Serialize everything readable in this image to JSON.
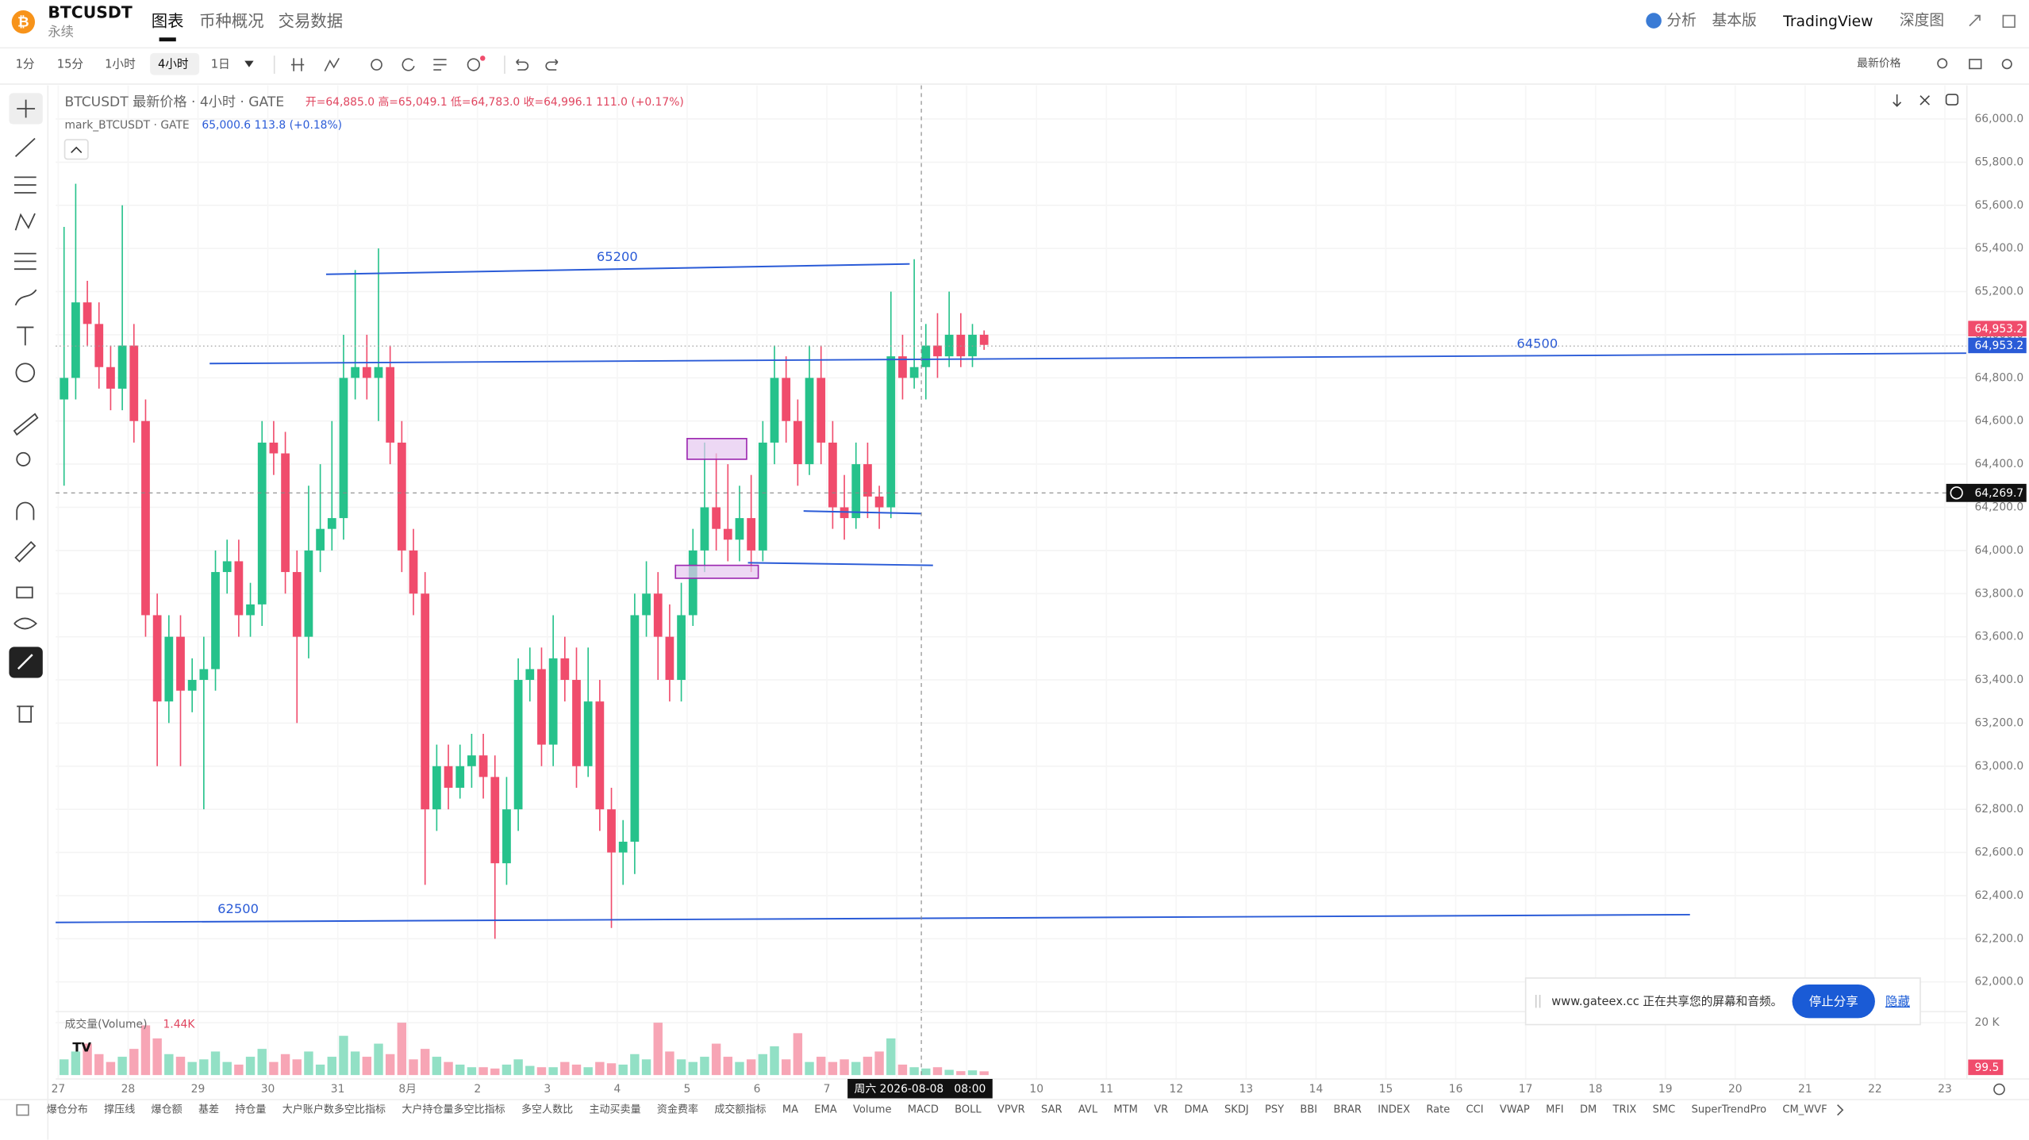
{
  "ui": {
    "symbol": "BTCUSDT",
    "contract": "永续",
    "tabs": [
      "图表",
      "币种概况",
      "交易数据"
    ],
    "right_menu": [
      "分析",
      "基本版",
      "TradingView",
      "深度图"
    ],
    "intervals": [
      "1分",
      "15分",
      "1小时",
      "4小时",
      "1日"
    ],
    "price_mode": "最新价格",
    "legend_title": "BTCUSDT 最新价格 · 4小时 · GATE",
    "legend_ohlc": "开=64,885.0 高=65,049.1 低=64,783.0 收=64,996.1 111.0 (+0.17%)",
    "mark_title": "mark_BTCUSDT · GATE",
    "mark_value": "65,000.6 113.8 (+0.18%)",
    "drawing_labels": [
      "65200",
      "64500",
      "62500"
    ],
    "volume_title": "成交量(Volume)",
    "volume_last": "1.44K",
    "last_price_tags": [
      "64,953.2",
      "64,953.2"
    ],
    "crosshair_price": "64,269.7",
    "crosshair_time": "周六 2026-08-08   08:00",
    "volume_tag": "99.5",
    "indicators": [
      "爆仓分布",
      "撑压线",
      "爆仓额",
      "基差",
      "持仓量",
      "大户账户数多空比指标",
      "大户持仓量多空比指标",
      "多空人数比",
      "主动买卖量",
      "资金费率",
      "成交额指标",
      "MA",
      "EMA",
      "Volume",
      "MACD",
      "BOLL",
      "VPVR",
      "SAR",
      "AVL",
      "MTM",
      "VR",
      "DMA",
      "SKDJ",
      "PSY",
      "BBI",
      "BRAR",
      "INDEX",
      "Rate",
      "CCI",
      "VWAP",
      "MFI",
      "DM",
      "TRIX",
      "SMC",
      "SuperTrendPro",
      "CM_WVF"
    ],
    "share_text": "www.gateex.cc 正在共享您的屏幕和音频。",
    "share_stop": "停止分享",
    "share_hide": "隐藏"
  },
  "chart_data": {
    "type": "candlestick",
    "up_color": "#26c28b",
    "down_color": "#f04c6c",
    "x_labels": [
      "27",
      "28",
      "29",
      "30",
      "31",
      "8月",
      "2",
      "3",
      "4",
      "5",
      "6",
      "7",
      null,
      null,
      "10",
      "11",
      "12",
      "13",
      "14",
      "15",
      "16",
      "17",
      "18",
      "19",
      "20",
      "21",
      "22",
      "23"
    ],
    "open": [
      64700,
      64800,
      65150,
      65050,
      64850,
      64750,
      64950,
      64600,
      63700,
      63300,
      63600,
      63350,
      63400,
      63450,
      63900,
      63950,
      63700,
      63750,
      64500,
      64450,
      63900,
      63600,
      64000,
      64100,
      64150,
      64800,
      64850,
      64800,
      64850,
      64500,
      64000,
      63800,
      62800,
      63000,
      62900,
      63000,
      63050,
      62950,
      62550,
      62800,
      63400,
      63450,
      63100,
      63500,
      63400,
      63000,
      63300,
      62800,
      62600,
      62650,
      63700,
      63800,
      63600,
      63400,
      63700,
      64000,
      64200,
      64100,
      64050,
      64150,
      64000,
      64500,
      64800,
      64600,
      64400,
      64800,
      64500,
      64200,
      64150,
      64400,
      64250,
      64200,
      64900,
      64800,
      64850,
      64950,
      64900,
      65000,
      64900,
      65000
    ],
    "high": [
      65500,
      65700,
      65250,
      65150,
      64950,
      65600,
      65050,
      64700,
      63800,
      63700,
      63700,
      63500,
      63600,
      64000,
      64050,
      64050,
      63850,
      64600,
      64600,
      64550,
      64000,
      64300,
      64400,
      64600,
      65000,
      65300,
      65000,
      65400,
      64950,
      64600,
      64100,
      63900,
      63100,
      63100,
      63100,
      63150,
      63150,
      63050,
      62950,
      63500,
      63550,
      63550,
      63700,
      63600,
      63550,
      63550,
      63400,
      62900,
      62750,
      63800,
      63950,
      63900,
      63750,
      63850,
      64100,
      64500,
      64450,
      64400,
      64300,
      64350,
      64600,
      64950,
      64900,
      64700,
      64950,
      64950,
      64600,
      64350,
      64500,
      64500,
      64300,
      65200,
      65000,
      65350,
      65050,
      65100,
      65200,
      65100,
      65050,
      65020
    ],
    "low": [
      64300,
      64700,
      64950,
      64750,
      64650,
      64650,
      64500,
      63600,
      63000,
      63200,
      63000,
      63250,
      62800,
      63350,
      63800,
      63600,
      63600,
      63650,
      64350,
      63800,
      63200,
      63500,
      63900,
      64000,
      64050,
      64700,
      64700,
      64600,
      64400,
      63900,
      63700,
      62450,
      62700,
      62800,
      62850,
      62900,
      62850,
      62200,
      62450,
      62700,
      63300,
      63000,
      63000,
      63300,
      62900,
      62950,
      62700,
      62250,
      62450,
      62500,
      63600,
      63400,
      63300,
      63300,
      63650,
      63900,
      64000,
      63950,
      63950,
      63900,
      63950,
      64400,
      64500,
      64300,
      64350,
      64400,
      64100,
      64050,
      64100,
      64150,
      64100,
      64150,
      64700,
      64750,
      64700,
      64800,
      64850,
      64850,
      64850,
      64930
    ],
    "close": [
      64800,
      65150,
      65050,
      64850,
      64750,
      64950,
      64600,
      63700,
      63300,
      63600,
      63350,
      63400,
      63450,
      63900,
      63950,
      63700,
      63750,
      64500,
      64450,
      63900,
      63600,
      64000,
      64100,
      64150,
      64800,
      64850,
      64800,
      64850,
      64500,
      64000,
      63800,
      62800,
      63000,
      62900,
      63000,
      63050,
      62950,
      62550,
      62800,
      63400,
      63450,
      63100,
      63500,
      63400,
      63000,
      63300,
      62800,
      62600,
      62650,
      63700,
      63800,
      63600,
      63400,
      63700,
      64000,
      64200,
      64100,
      64050,
      64150,
      64000,
      64500,
      64800,
      64600,
      64400,
      64800,
      64500,
      64200,
      64150,
      64400,
      64250,
      64200,
      64900,
      64800,
      64850,
      64950,
      64900,
      65000,
      64900,
      65000,
      64953
    ],
    "volume": [
      6000,
      9000,
      12000,
      8000,
      5000,
      7000,
      10000,
      19000,
      14000,
      8000,
      7000,
      5000,
      6000,
      9000,
      5000,
      4000,
      7000,
      10000,
      5000,
      8000,
      6000,
      9000,
      4000,
      7000,
      15000,
      9000,
      7000,
      12000,
      8000,
      20000,
      6000,
      10000,
      7000,
      5000,
      4000,
      3000,
      3000,
      2500,
      4000,
      6000,
      3500,
      3000,
      3000,
      5000,
      4000,
      3000,
      5000,
      4500,
      4000,
      8000,
      6000,
      20000,
      9000,
      6000,
      5000,
      7000,
      12000,
      7000,
      5000,
      6000,
      8000,
      11000,
      6000,
      16000,
      5000,
      7000,
      5000,
      6000,
      5000,
      7000,
      9000,
      14000,
      4000,
      3000,
      2500,
      3000,
      2000,
      1500,
      1800,
      1440
    ],
    "ylim": [
      62000,
      66000
    ],
    "yticks": [
      {
        "value": 66000,
        "label": "66,000.0"
      },
      {
        "value": 65800,
        "label": "65,800.0"
      },
      {
        "value": 65600,
        "label": "65,600.0"
      },
      {
        "value": 65400,
        "label": "65,400.0"
      },
      {
        "value": 65200,
        "label": "65,200.0"
      },
      {
        "value": 65000,
        "label": "65,000.0"
      },
      {
        "value": 64800,
        "label": "64,800.0"
      },
      {
        "value": 64600,
        "label": "64,600.0"
      },
      {
        "value": 64400,
        "label": "64,400.0"
      },
      {
        "value": 64200,
        "label": "64,200.0"
      },
      {
        "value": 64000,
        "label": "64,000.0"
      },
      {
        "value": 63800,
        "label": "63,800.0"
      },
      {
        "value": 63600,
        "label": "63,600.0"
      },
      {
        "value": 63400,
        "label": "63,400.0"
      },
      {
        "value": 63200,
        "label": "63,200.0"
      },
      {
        "value": 63000,
        "label": "63,000.0"
      },
      {
        "value": 62800,
        "label": "62,800.0"
      },
      {
        "value": 62600,
        "label": "62,600.0"
      },
      {
        "value": 62400,
        "label": "62,400.0"
      },
      {
        "value": 62200,
        "label": "62,200.0"
      },
      {
        "value": 62000,
        "label": "62,000.0"
      }
    ],
    "volume_ylim": [
      0,
      22000
    ],
    "volume_yticks": [
      {
        "value": 20000,
        "label": "20 K"
      }
    ],
    "grid": true
  }
}
